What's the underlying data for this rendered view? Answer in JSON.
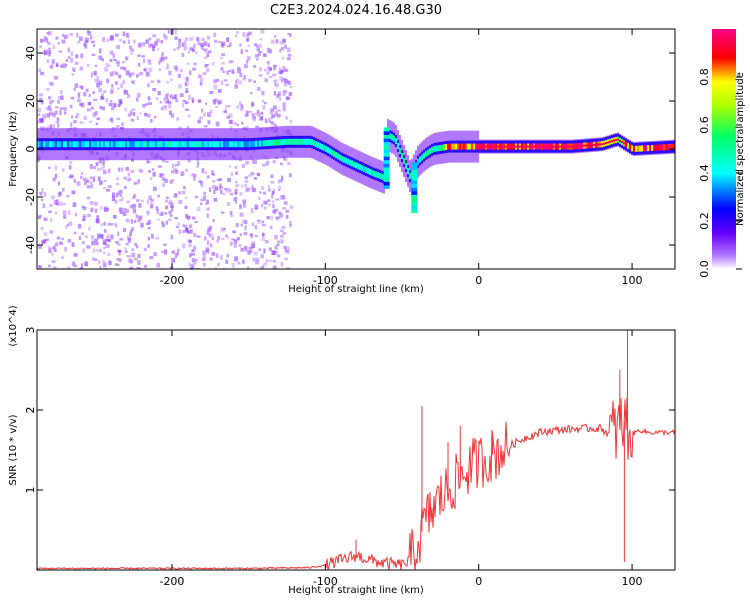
{
  "title": "C2E3.2024.024.16.48.G30",
  "chart_data": [
    {
      "type": "heatmap",
      "xlabel": "Height of straight line (km)",
      "ylabel": "Frequency (Hz)",
      "xlim": [
        -288,
        128
      ],
      "ylim": [
        -50,
        50
      ],
      "xticks": [
        -200,
        -100,
        0,
        100
      ],
      "xtick_labels": [
        "-200",
        "-100",
        "0",
        "100"
      ],
      "yticks": [
        -40,
        -20,
        0,
        20,
        40
      ],
      "ytick_labels": [
        "-40",
        "-20",
        "0",
        "20",
        "40"
      ],
      "colorbar": {
        "label": "Normalized spectral amplitude",
        "range": [
          0,
          1
        ],
        "ticks": [
          0.0,
          0.2,
          0.4,
          0.6,
          0.8
        ],
        "tick_labels": [
          "0.0",
          "0.2",
          "0.4",
          "0.6",
          "0.8"
        ],
        "colors": [
          "#ffffff",
          "#8800ff",
          "#0000ff",
          "#00ffff",
          "#00ff00",
          "#ffff00",
          "#ff0000",
          "#ff00aa"
        ]
      },
      "ridge": {
        "x": [
          -288,
          -250,
          -200,
          -150,
          -125,
          -110,
          -100,
          -90,
          -80,
          -70,
          -62,
          -60,
          -55,
          -45,
          -40,
          -35,
          -30,
          -20,
          -10,
          0,
          20,
          60,
          80,
          90,
          100,
          128
        ],
        "y": [
          2,
          2,
          2,
          2,
          3,
          3,
          0,
          -4,
          -7,
          -10,
          -12,
          6,
          4,
          -12,
          -5,
          -2,
          0,
          1,
          1,
          1,
          1,
          1,
          2,
          4,
          0,
          1
        ],
        "amplitude": [
          0.4,
          0.4,
          0.45,
          0.4,
          0.55,
          0.5,
          0.55,
          0.5,
          0.45,
          0.5,
          0.5,
          0.55,
          0.5,
          0.5,
          0.45,
          0.55,
          0.55,
          0.85,
          0.85,
          1.0,
          1.0,
          1.0,
          0.9,
          0.7,
          0.9,
          1.0
        ]
      }
    },
    {
      "type": "line",
      "xlabel": "Height of straight line (km)",
      "ylabel": "SNR (10 * v/v)",
      "yscale_label": "(x10^4)",
      "xlim": [
        -288,
        128
      ],
      "ylim": [
        0,
        3
      ],
      "xticks": [
        -200,
        -100,
        0,
        100
      ],
      "xtick_labels": [
        "-200",
        "-100",
        "0",
        "100"
      ],
      "yticks": [
        1,
        2,
        3
      ],
      "ytick_labels": [
        "1",
        "2",
        "3"
      ],
      "series": [
        {
          "color": "#ee3333",
          "x": [
            -288,
            -250,
            -200,
            -150,
            -110,
            -100,
            -90,
            -80,
            -70,
            -60,
            -50,
            -45,
            -40,
            -35,
            -30,
            -25,
            -20,
            -15,
            -10,
            -5,
            0,
            10,
            20,
            30,
            40,
            50,
            60,
            70,
            80,
            85,
            90,
            93,
            95,
            97,
            100,
            105,
            110,
            128
          ],
          "y": [
            0.02,
            0.02,
            0.02,
            0.02,
            0.03,
            0.06,
            0.12,
            0.18,
            0.12,
            0.08,
            0.06,
            0.12,
            0.3,
            0.6,
            0.75,
            0.9,
            1.0,
            1.1,
            1.2,
            1.3,
            1.35,
            1.45,
            1.55,
            1.65,
            1.72,
            1.75,
            1.76,
            1.77,
            1.77,
            1.7,
            1.75,
            1.8,
            1.85,
            1.8,
            1.7,
            1.75,
            1.72,
            1.72
          ]
        }
      ],
      "spikes": [
        {
          "x": -80,
          "y": 0.38
        },
        {
          "x": -37,
          "y": 2.05
        },
        {
          "x": -20,
          "y": 1.6
        },
        {
          "x": -12,
          "y": 1.8
        },
        {
          "x": 9,
          "y": 1.7
        },
        {
          "x": 92,
          "y": 2.5
        },
        {
          "x": 95,
          "y": 0.1
        },
        {
          "x": 97,
          "y": 3.0
        }
      ]
    }
  ]
}
